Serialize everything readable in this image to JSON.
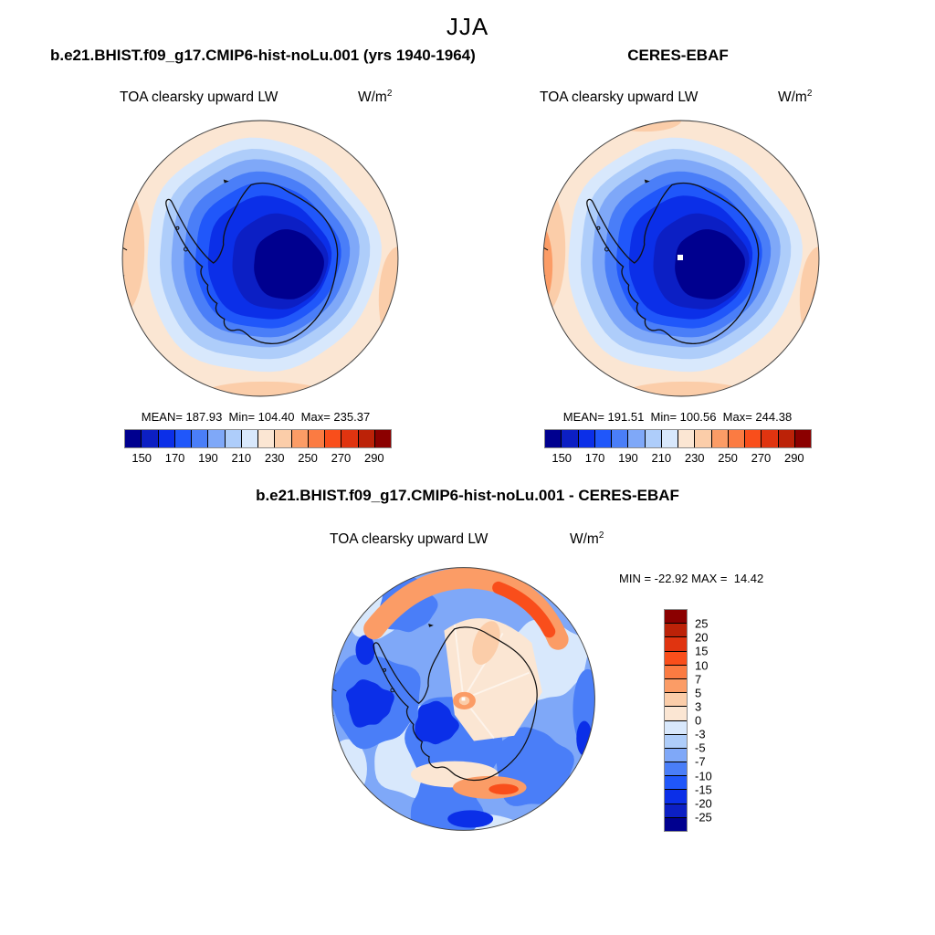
{
  "figure": {
    "season_title": "JJA",
    "model": {
      "title": "b.e21.BHIST.f09_g17.CMIP6-hist-noLu.001 (yrs 1940-1964)",
      "field": "TOA clearsky upward LW",
      "units_base": "W/m",
      "units_exp": "2",
      "stats": "MEAN= 187.93  Min= 104.40  Max= 235.37",
      "ticks": [
        "150",
        "170",
        "190",
        "210",
        "230",
        "250",
        "270",
        "290"
      ]
    },
    "obs": {
      "title": "CERES-EBAF",
      "field": "TOA clearsky upward LW",
      "units_base": "W/m",
      "units_exp": "2",
      "stats": "MEAN= 191.51  Min= 100.56  Max= 244.38",
      "ticks": [
        "150",
        "170",
        "190",
        "210",
        "230",
        "250",
        "270",
        "290"
      ]
    },
    "diff": {
      "title": "b.e21.BHIST.f09_g17.CMIP6-hist-noLu.001 - CERES-EBAF",
      "field": "TOA clearsky upward LW",
      "units_base": "W/m",
      "units_exp": "2",
      "minmax": "MIN = -22.92 MAX =  14.42",
      "ticks": [
        "25",
        "20",
        "15",
        "10",
        "7",
        "5",
        "3",
        "0",
        "-3",
        "-5",
        "-7",
        "-10",
        "-15",
        "-20",
        "-25"
      ]
    }
  },
  "palette": [
    "#00008F",
    "#0C1FC4",
    "#0B2FE8",
    "#2057FA",
    "#4A7EF8",
    "#7FA8F8",
    "#AECDFA",
    "#D8E8FC",
    "#FBE6D3",
    "#FBCDA9",
    "#FB9C66",
    "#FB7B42",
    "#F94E1B",
    "#E03410",
    "#BC2208",
    "#8B0000"
  ],
  "map_colors": {
    "coastline": "#111111",
    "map_rim": "#444444",
    "pole_missing_dot": "#ffffff"
  },
  "chart_data": [
    {
      "type": "heatmap",
      "subtype": "filled-contour south-polar-stereographic map",
      "region": "Antarctica and Southern Ocean",
      "season": "JJA",
      "title": "b.e21.BHIST.f09_g17.CMIP6-hist-noLu.001 (yrs 1940-1964)",
      "field": "TOA clearsky upward LW",
      "units": "W/m^2",
      "stats": {
        "mean": 187.93,
        "min": 104.4,
        "max": 235.37
      },
      "contour_levels": [
        150,
        160,
        170,
        180,
        190,
        200,
        210,
        220,
        230,
        240,
        250,
        260,
        270,
        280,
        290
      ],
      "colorbar_tick_labels": [
        150,
        170,
        190,
        210,
        230,
        250,
        270,
        290
      ],
      "colorbar_orientation": "horizontal",
      "legend_position": "below map",
      "pattern": "lowest values (dark navy ~105-160) over East Antarctic plateau, increasing outward through blues over the continent margin to pale peach (~230-250) over the surrounding Southern Ocean"
    },
    {
      "type": "heatmap",
      "subtype": "filled-contour south-polar-stereographic map",
      "region": "Antarctica and Southern Ocean",
      "season": "JJA",
      "title": "CERES-EBAF",
      "field": "TOA clearsky upward LW",
      "units": "W/m^2",
      "stats": {
        "mean": 191.51,
        "min": 100.56,
        "max": 244.38
      },
      "contour_levels": [
        150,
        160,
        170,
        180,
        190,
        200,
        210,
        220,
        230,
        240,
        250,
        260,
        270,
        280,
        290
      ],
      "colorbar_tick_labels": [
        150,
        170,
        190,
        210,
        230,
        250,
        270,
        290
      ],
      "colorbar_orientation": "horizontal",
      "legend_position": "below map",
      "pattern": "same spatial pattern as model panel with slightly stronger orange over ocean edges; small white missing-data dot at the South Pole"
    },
    {
      "type": "heatmap",
      "subtype": "filled-contour south-polar-stereographic difference map",
      "region": "Antarctica and Southern Ocean",
      "season": "JJA",
      "title": "b.e21.BHIST.f09_g17.CMIP6-hist-noLu.001 - CERES-EBAF",
      "field": "TOA clearsky upward LW",
      "units": "W/m^2",
      "stats": {
        "min": -22.92,
        "max": 14.42
      },
      "contour_levels": [
        -25,
        -20,
        -15,
        -10,
        -7,
        -5,
        -3,
        0,
        3,
        5,
        7,
        10,
        15,
        20,
        25
      ],
      "colorbar_tick_labels": [
        25,
        20,
        15,
        10,
        7,
        5,
        3,
        0,
        -3,
        -5,
        -7,
        -10,
        -15,
        -20,
        -25
      ],
      "colorbar_orientation": "vertical",
      "legend_position": "right of map",
      "pattern": "mostly negative (blue) differences over the Southern Ocean, strongest dark-blue west of the Antarctic Peninsula; positive (orange-red) band near the top map edge, pale/positive radial fan over interior East Antarctica near the pole, and an orange-red patch south of the map bottom near the coast"
    }
  ]
}
